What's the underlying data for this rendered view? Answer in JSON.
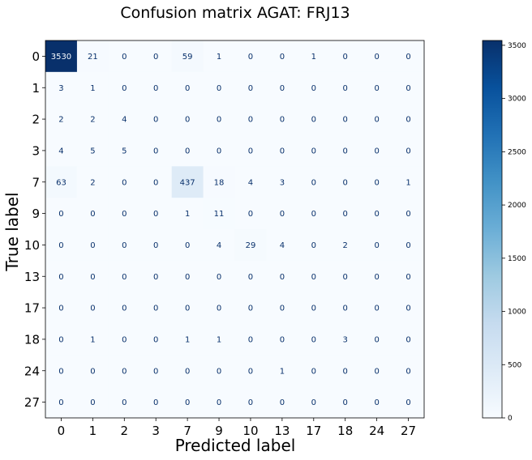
{
  "chart_data": {
    "type": "heatmap",
    "title": "Confusion matrix AGAT: FRJ13",
    "xlabel": "Predicted label",
    "ylabel": "True label",
    "x_labels": [
      "0",
      "1",
      "2",
      "3",
      "7",
      "9",
      "10",
      "13",
      "17",
      "18",
      "24",
      "27"
    ],
    "y_labels": [
      "0",
      "1",
      "2",
      "3",
      "7",
      "9",
      "10",
      "13",
      "17",
      "18",
      "24",
      "27"
    ],
    "values": [
      [
        3530,
        21,
        0,
        0,
        59,
        1,
        0,
        0,
        1,
        0,
        0,
        0
      ],
      [
        3,
        1,
        0,
        0,
        0,
        0,
        0,
        0,
        0,
        0,
        0,
        0
      ],
      [
        2,
        2,
        4,
        0,
        0,
        0,
        0,
        0,
        0,
        0,
        0,
        0
      ],
      [
        4,
        5,
        5,
        0,
        0,
        0,
        0,
        0,
        0,
        0,
        0,
        0
      ],
      [
        63,
        2,
        0,
        0,
        437,
        18,
        4,
        3,
        0,
        0,
        0,
        1
      ],
      [
        0,
        0,
        0,
        0,
        1,
        11,
        0,
        0,
        0,
        0,
        0,
        0
      ],
      [
        0,
        0,
        0,
        0,
        0,
        4,
        29,
        4,
        0,
        2,
        0,
        0
      ],
      [
        0,
        0,
        0,
        0,
        0,
        0,
        0,
        0,
        0,
        0,
        0,
        0
      ],
      [
        0,
        0,
        0,
        0,
        0,
        0,
        0,
        0,
        0,
        0,
        0,
        0
      ],
      [
        0,
        1,
        0,
        0,
        1,
        1,
        0,
        0,
        0,
        3,
        0,
        0
      ],
      [
        0,
        0,
        0,
        0,
        0,
        0,
        0,
        1,
        0,
        0,
        0,
        0
      ],
      [
        0,
        0,
        0,
        0,
        0,
        0,
        0,
        0,
        0,
        0,
        0,
        0
      ]
    ],
    "colormap": "Blues",
    "vmin": 0,
    "vmax": 3530,
    "colorbar_ticks": [
      0,
      500,
      1000,
      1500,
      2000,
      2500,
      3000,
      3500
    ],
    "colorbar_tick_labels": [
      "0",
      "500",
      "1000",
      "1500",
      "2000",
      "2500",
      "3000",
      "3500"
    ],
    "colors": {
      "low": "#f7fbff",
      "high": "#08306b",
      "text_dark": "#08306b",
      "text_light": "#f7fbff"
    },
    "grid": false
  }
}
